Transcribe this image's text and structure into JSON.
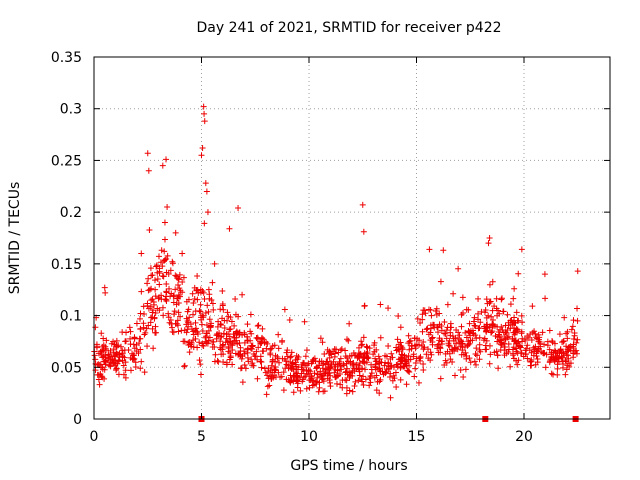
{
  "chart_data": {
    "type": "scatter",
    "title": "Day 241 of 2021, SRMTID for receiver p422",
    "xlabel": "GPS time / hours",
    "ylabel": "SRMTID / TECUs",
    "xlim": [
      0,
      24
    ],
    "ylim": [
      0,
      0.35
    ],
    "grid": true,
    "marker": "+",
    "color": "#ee0000",
    "x_ticks": [
      0,
      5,
      10,
      15,
      20
    ],
    "x_tick_labels": [
      "0",
      "5",
      "10",
      "15",
      "20"
    ],
    "y_ticks": [
      0,
      0.05,
      0.1,
      0.15,
      0.2,
      0.25,
      0.3,
      0.35
    ],
    "y_tick_labels": [
      "0",
      "0.05",
      "0.1",
      "0.15",
      "0.2",
      "0.25",
      "0.3",
      "0.35"
    ],
    "zero_markers_x": [
      5.0,
      18.2,
      22.4
    ],
    "series": [
      {
        "name": "SRMTID",
        "envelope_x": [
          0,
          0.5,
          1.0,
          1.5,
          2.0,
          2.5,
          3.0,
          3.5,
          4.0,
          4.5,
          5.0,
          5.5,
          6.0,
          6.5,
          7.0,
          7.5,
          8.0,
          8.5,
          9.0,
          9.5,
          10.0,
          10.5,
          11.0,
          11.5,
          12.0,
          12.5,
          13.0,
          13.5,
          14.0,
          14.5,
          15.0,
          15.5,
          16.0,
          16.5,
          17.0,
          17.5,
          18.0,
          18.5,
          19.0,
          19.5,
          20.0,
          20.5,
          21.0,
          21.5,
          22.0,
          22.5
        ],
        "envelope_center": [
          0.055,
          0.06,
          0.06,
          0.065,
          0.07,
          0.1,
          0.13,
          0.13,
          0.11,
          0.09,
          0.1,
          0.085,
          0.08,
          0.075,
          0.07,
          0.065,
          0.06,
          0.055,
          0.05,
          0.045,
          0.045,
          0.045,
          0.05,
          0.05,
          0.05,
          0.055,
          0.055,
          0.05,
          0.055,
          0.06,
          0.07,
          0.075,
          0.08,
          0.075,
          0.075,
          0.08,
          0.085,
          0.085,
          0.08,
          0.08,
          0.075,
          0.07,
          0.065,
          0.06,
          0.06,
          0.075
        ],
        "envelope_spread": [
          0.02,
          0.025,
          0.025,
          0.025,
          0.025,
          0.04,
          0.045,
          0.045,
          0.04,
          0.035,
          0.045,
          0.035,
          0.03,
          0.03,
          0.028,
          0.025,
          0.025,
          0.022,
          0.02,
          0.018,
          0.018,
          0.02,
          0.02,
          0.022,
          0.022,
          0.022,
          0.022,
          0.02,
          0.022,
          0.025,
          0.028,
          0.03,
          0.03,
          0.03,
          0.03,
          0.03,
          0.032,
          0.032,
          0.03,
          0.028,
          0.026,
          0.025,
          0.022,
          0.02,
          0.02,
          0.025
        ],
        "spikes": [
          [
            2.5,
            0.257
          ],
          [
            2.55,
            0.24
          ],
          [
            3.2,
            0.245
          ],
          [
            3.35,
            0.251
          ],
          [
            3.4,
            0.205
          ],
          [
            3.3,
            0.19
          ],
          [
            5.0,
            0.255
          ],
          [
            5.1,
            0.302
          ],
          [
            5.12,
            0.295
          ],
          [
            5.15,
            0.288
          ],
          [
            5.05,
            0.262
          ],
          [
            5.2,
            0.228
          ],
          [
            5.25,
            0.22
          ],
          [
            5.3,
            0.2
          ],
          [
            6.3,
            0.184
          ],
          [
            6.7,
            0.204
          ],
          [
            12.5,
            0.207
          ],
          [
            12.55,
            0.181
          ],
          [
            15.6,
            0.164
          ],
          [
            18.4,
            0.175
          ],
          [
            18.35,
            0.17
          ],
          [
            19.9,
            0.164
          ],
          [
            22.5,
            0.143
          ],
          [
            0.5,
            0.127
          ],
          [
            0.52,
            0.122
          ],
          [
            2.2,
            0.16
          ],
          [
            3.8,
            0.18
          ],
          [
            4.1,
            0.16
          ]
        ]
      }
    ]
  }
}
